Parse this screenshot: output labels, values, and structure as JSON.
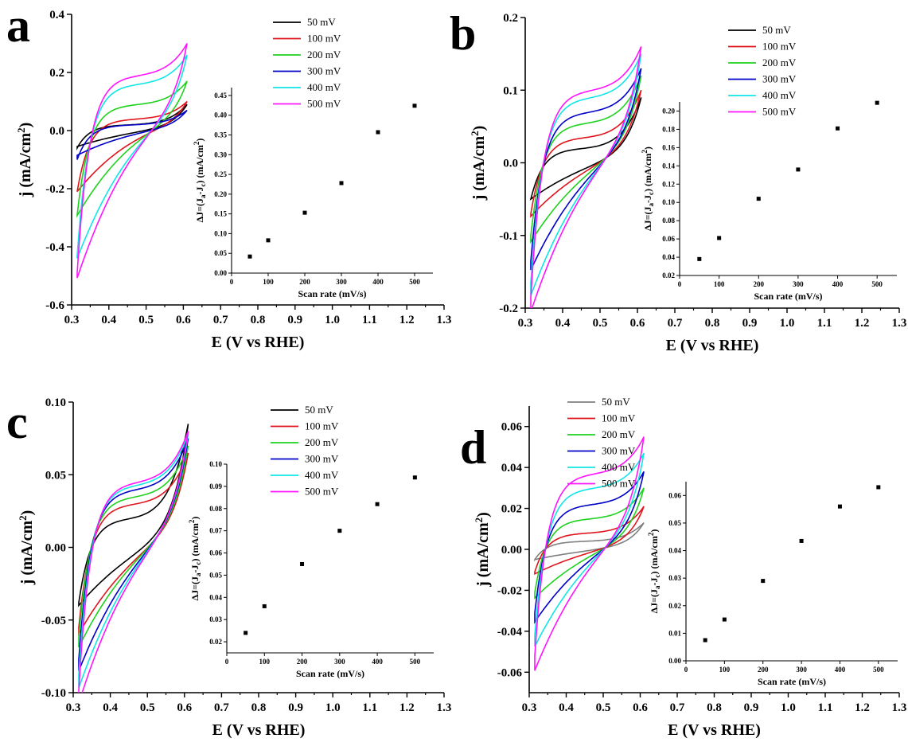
{
  "chart_data": [
    {
      "type": "line",
      "panel_label": "a",
      "xlabel": "E (V vs RHE)",
      "ylabel": "j (mA/cm²)",
      "xlim": [
        0.3,
        1.3
      ],
      "ylim": [
        -0.6,
        0.4
      ],
      "xticks": [
        "0.3",
        "0.4",
        "0.5",
        "0.6",
        "0.7",
        "0.8",
        "0.9",
        "1.0",
        "1.1",
        "1.2",
        "1.3"
      ],
      "yticks": [
        "-0.6",
        "-0.4",
        "-0.2",
        "0.0",
        "0.2",
        "0.4"
      ],
      "legend_position": "top-right",
      "series": [
        {
          "name": "50 mV",
          "color": "#000000",
          "x_range": [
            0.315,
            0.61
          ],
          "j_anodic_start": -0.06,
          "j_anodic_plateau": 0.02,
          "j_vertex": 0.09,
          "j_cathodic_end": -0.05
        },
        {
          "name": "100 mV",
          "color": "#e0141c",
          "x_range": [
            0.315,
            0.61
          ],
          "j_anodic_start": -0.21,
          "j_anodic_plateau": 0.04,
          "j_vertex": 0.1,
          "j_cathodic_end": -0.2
        },
        {
          "name": "200 mV",
          "color": "#1ed21e",
          "x_range": [
            0.315,
            0.61
          ],
          "j_anodic_start": -0.29,
          "j_anodic_plateau": 0.09,
          "j_vertex": 0.17,
          "j_cathodic_end": -0.27
        },
        {
          "name": "300 mV",
          "color": "#0000c8",
          "x_range": [
            0.315,
            0.61
          ],
          "j_anodic_start": -0.1,
          "j_anodic_plateau": 0.02,
          "j_vertex": 0.07,
          "j_cathodic_end": -0.08
        },
        {
          "name": "400 mV",
          "color": "#10e6e6",
          "x_range": [
            0.315,
            0.61
          ],
          "j_anodic_start": -0.43,
          "j_anodic_plateau": 0.16,
          "j_vertex": 0.26,
          "j_cathodic_end": -0.4
        },
        {
          "name": "500 mV",
          "color": "#ff14ff",
          "x_range": [
            0.315,
            0.61
          ],
          "j_anodic_start": -0.49,
          "j_anodic_plateau": 0.19,
          "j_vertex": 0.3,
          "j_cathodic_end": -0.46
        }
      ],
      "inset": {
        "type": "scatter",
        "xlabel": "Scan rate (mV/s)",
        "ylabel": "ΔJ=(Ja-Jc) (mA/cm²)",
        "xlim": [
          0,
          550
        ],
        "ylim": [
          0,
          0.47
        ],
        "xticks": [
          "0",
          "100",
          "200",
          "300",
          "400",
          "500"
        ],
        "yticks": [
          "0.00",
          "0.05",
          "0.10",
          "0.15",
          "0.20",
          "0.25",
          "0.30",
          "0.35",
          "0.40",
          "0.45"
        ],
        "x": [
          50,
          100,
          200,
          300,
          400,
          500
        ],
        "y": [
          0.042,
          0.083,
          0.153,
          0.228,
          0.357,
          0.424
        ]
      }
    },
    {
      "type": "line",
      "panel_label": "b",
      "xlabel": "E (V vs RHE)",
      "ylabel": "j (mA/cm²)",
      "xlim": [
        0.3,
        1.3
      ],
      "ylim": [
        -0.2,
        0.2
      ],
      "xticks": [
        "0.3",
        "0.4",
        "0.5",
        "0.6",
        "0.7",
        "0.8",
        "0.9",
        "1.0",
        "1.1",
        "1.2",
        "1.3"
      ],
      "yticks": [
        "-0.2",
        "-0.1",
        "0.0",
        "0.1",
        "0.2"
      ],
      "legend_position": "top-right",
      "series": [
        {
          "name": "50 mV",
          "color": "#000000",
          "x_range": [
            0.315,
            0.61
          ],
          "j_anodic_start": -0.05,
          "j_anodic_plateau": 0.02,
          "j_vertex": 0.09,
          "j_cathodic_end": -0.045
        },
        {
          "name": "100 mV",
          "color": "#e0141c",
          "x_range": [
            0.315,
            0.61
          ],
          "j_anodic_start": -0.07,
          "j_anodic_plateau": 0.035,
          "j_vertex": 0.1,
          "j_cathodic_end": -0.065
        },
        {
          "name": "200 mV",
          "color": "#1ed21e",
          "x_range": [
            0.315,
            0.61
          ],
          "j_anodic_start": -0.1,
          "j_anodic_plateau": 0.055,
          "j_vertex": 0.12,
          "j_cathodic_end": -0.095
        },
        {
          "name": "300 mV",
          "color": "#0000c8",
          "x_range": [
            0.315,
            0.61
          ],
          "j_anodic_start": -0.135,
          "j_anodic_plateau": 0.07,
          "j_vertex": 0.13,
          "j_cathodic_end": -0.13
        },
        {
          "name": "400 mV",
          "color": "#10e6e6",
          "x_range": [
            0.315,
            0.61
          ],
          "j_anodic_start": -0.165,
          "j_anodic_plateau": 0.09,
          "j_vertex": 0.15,
          "j_cathodic_end": -0.16
        },
        {
          "name": "500 mV",
          "color": "#ff14ff",
          "x_range": [
            0.315,
            0.61
          ],
          "j_anodic_start": -0.185,
          "j_anodic_plateau": 0.1,
          "j_vertex": 0.16,
          "j_cathodic_end": -0.18
        }
      ],
      "inset": {
        "type": "scatter",
        "xlabel": "Scan rate (mV/s)",
        "ylabel": "ΔJ=(Ja-Jc) (mA/cm²)",
        "xlim": [
          0,
          550
        ],
        "ylim": [
          0.02,
          0.21
        ],
        "xticks": [
          "0",
          "100",
          "200",
          "300",
          "400",
          "500"
        ],
        "yticks": [
          "0.02",
          "0.04",
          "0.06",
          "0.08",
          "0.10",
          "0.12",
          "0.14",
          "0.16",
          "0.18",
          "0.20"
        ],
        "x": [
          50,
          100,
          200,
          300,
          400,
          500
        ],
        "y": [
          0.038,
          0.061,
          0.104,
          0.136,
          0.181,
          0.209
        ]
      }
    },
    {
      "type": "line",
      "panel_label": "c",
      "xlabel": "E (V vs RHE)",
      "ylabel": "j (mA/cm²)",
      "xlim": [
        0.3,
        1.3
      ],
      "ylim": [
        -0.1,
        0.1
      ],
      "xticks": [
        "0.3",
        "0.4",
        "0.5",
        "0.6",
        "0.7",
        "0.8",
        "0.9",
        "1.0",
        "1.1",
        "1.2",
        "1.3"
      ],
      "yticks": [
        "-0.10",
        "-0.05",
        "0.00",
        "0.05",
        "0.10"
      ],
      "legend_position": "top-right",
      "series": [
        {
          "name": "50 mV",
          "color": "#000000",
          "x_range": [
            0.315,
            0.61
          ],
          "j_anodic_start": -0.038,
          "j_anodic_plateau": 0.02,
          "j_vertex": 0.085,
          "j_cathodic_end": -0.035
        },
        {
          "name": "100 mV",
          "color": "#e0141c",
          "x_range": [
            0.315,
            0.61
          ],
          "j_anodic_start": -0.055,
          "j_anodic_plateau": 0.03,
          "j_vertex": 0.065,
          "j_cathodic_end": -0.052
        },
        {
          "name": "200 mV",
          "color": "#1ed21e",
          "x_range": [
            0.315,
            0.61
          ],
          "j_anodic_start": -0.062,
          "j_anodic_plateau": 0.035,
          "j_vertex": 0.07,
          "j_cathodic_end": -0.06
        },
        {
          "name": "300 mV",
          "color": "#0000c8",
          "x_range": [
            0.315,
            0.61
          ],
          "j_anodic_start": -0.077,
          "j_anodic_plateau": 0.04,
          "j_vertex": 0.075,
          "j_cathodic_end": -0.075
        },
        {
          "name": "400 mV",
          "color": "#10e6e6",
          "x_range": [
            0.315,
            0.61
          ],
          "j_anodic_start": -0.088,
          "j_anodic_plateau": 0.043,
          "j_vertex": 0.078,
          "j_cathodic_end": -0.086
        },
        {
          "name": "500 mV",
          "color": "#ff14ff",
          "x_range": [
            0.315,
            0.61
          ],
          "j_anodic_start": -0.098,
          "j_anodic_plateau": 0.045,
          "j_vertex": 0.08,
          "j_cathodic_end": -0.096
        }
      ],
      "inset": {
        "type": "scatter",
        "xlabel": "Scan rate (mV/s)",
        "ylabel": "ΔJ=(Ja-Jc) (mA/cm²)",
        "xlim": [
          0,
          550
        ],
        "ylim": [
          0.015,
          0.1
        ],
        "xticks": [
          "0",
          "100",
          "200",
          "300",
          "400",
          "500"
        ],
        "yticks": [
          "0.02",
          "0.03",
          "0.04",
          "0.05",
          "0.06",
          "0.07",
          "0.08",
          "0.09",
          "0.10"
        ],
        "x": [
          50,
          100,
          200,
          300,
          400,
          500
        ],
        "y": [
          0.024,
          0.036,
          0.055,
          0.07,
          0.082,
          0.094
        ]
      }
    },
    {
      "type": "line",
      "panel_label": "d",
      "xlabel": "E (V vs RHE)",
      "ylabel": "j (mA/cm²)",
      "xlim": [
        0.3,
        1.3
      ],
      "ylim": [
        -0.07,
        0.07
      ],
      "xticks": [
        "0.3",
        "0.4",
        "0.5",
        "0.6",
        "0.7",
        "0.8",
        "0.9",
        "1.0",
        "1.1",
        "1.2",
        "1.3"
      ],
      "yticks": [
        "-0.06",
        "-0.04",
        "-0.02",
        "0.00",
        "0.02",
        "0.04",
        "0.06"
      ],
      "legend_position": "top-right",
      "series": [
        {
          "name": "50 mV",
          "color": "#7f7f7f",
          "x_range": [
            0.315,
            0.61
          ],
          "j_anodic_start": -0.005,
          "j_anodic_plateau": 0.004,
          "j_vertex": 0.013,
          "j_cathodic_end": -0.004
        },
        {
          "name": "100 mV",
          "color": "#e0141c",
          "x_range": [
            0.315,
            0.61
          ],
          "j_anodic_start": -0.011,
          "j_anodic_plateau": 0.008,
          "j_vertex": 0.021,
          "j_cathodic_end": -0.01
        },
        {
          "name": "200 mV",
          "color": "#1ed21e",
          "x_range": [
            0.315,
            0.61
          ],
          "j_anodic_start": -0.021,
          "j_anodic_plateau": 0.015,
          "j_vertex": 0.03,
          "j_cathodic_end": -0.02
        },
        {
          "name": "300 mV",
          "color": "#0000c8",
          "x_range": [
            0.315,
            0.61
          ],
          "j_anodic_start": -0.031,
          "j_anodic_plateau": 0.022,
          "j_vertex": 0.038,
          "j_cathodic_end": -0.03
        },
        {
          "name": "400 mV",
          "color": "#10e6e6",
          "x_range": [
            0.315,
            0.61
          ],
          "j_anodic_start": -0.042,
          "j_anodic_plateau": 0.03,
          "j_vertex": 0.047,
          "j_cathodic_end": -0.04
        },
        {
          "name": "500 mV",
          "color": "#ff14ff",
          "x_range": [
            0.315,
            0.61
          ],
          "j_anodic_start": -0.052,
          "j_anodic_plateau": 0.037,
          "j_vertex": 0.055,
          "j_cathodic_end": -0.05
        }
      ],
      "inset": {
        "type": "scatter",
        "xlabel": "Scan rate (mV/s)",
        "ylabel": "ΔJ=(Ja-Jc) (mA/cm²)",
        "xlim": [
          0,
          550
        ],
        "ylim": [
          0,
          0.065
        ],
        "xticks": [
          "0",
          "100",
          "200",
          "300",
          "400",
          "500"
        ],
        "yticks": [
          "0.00",
          "0.01",
          "0.02",
          "0.03",
          "0.04",
          "0.05",
          "0.06"
        ],
        "x": [
          50,
          100,
          200,
          300,
          400,
          500
        ],
        "y": [
          0.0075,
          0.015,
          0.029,
          0.0435,
          0.056,
          0.063
        ]
      }
    }
  ]
}
